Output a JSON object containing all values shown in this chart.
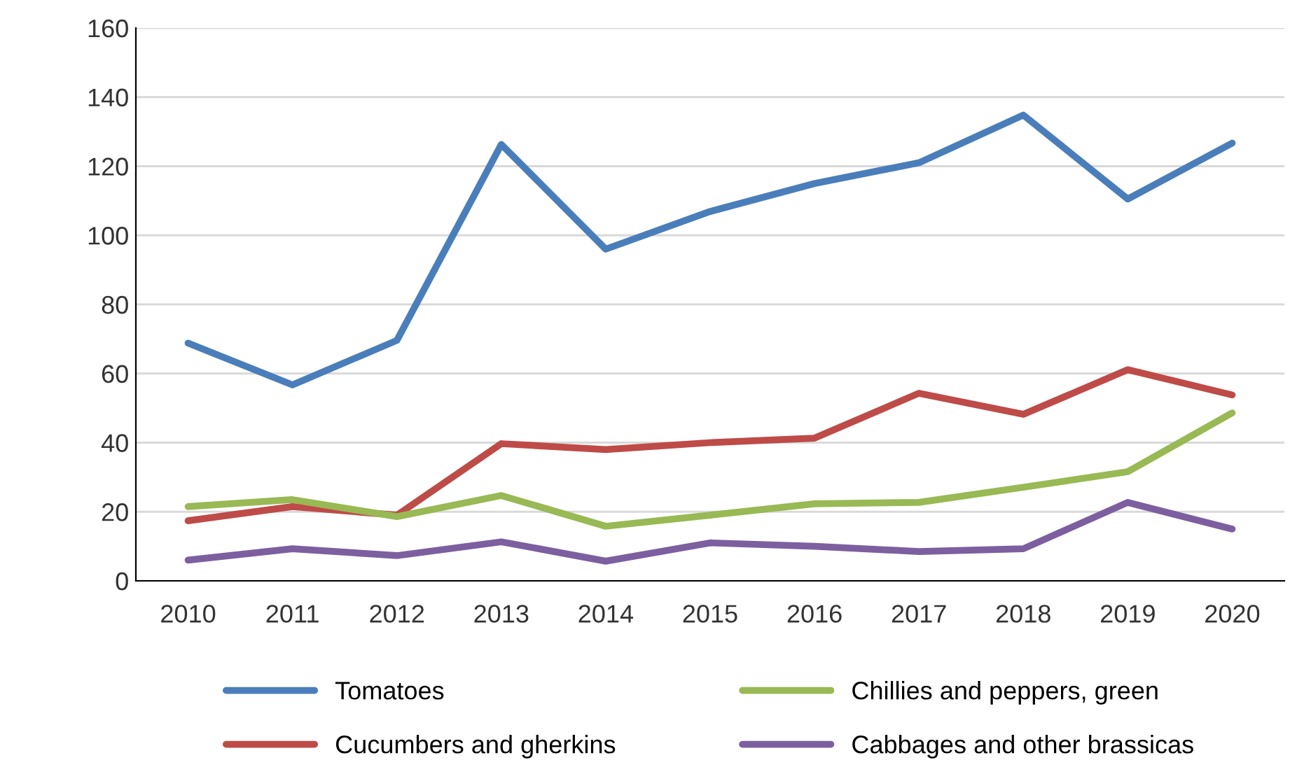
{
  "chart_data": {
    "type": "line",
    "categories": [
      "2010",
      "2011",
      "2012",
      "2013",
      "2014",
      "2015",
      "2016",
      "2017",
      "2018",
      "2019",
      "2020"
    ],
    "series": [
      {
        "name": "Tomatoes",
        "color": "#4a7ebb",
        "values": [
          68.8,
          56.7,
          69.6,
          126.3,
          96,
          106.9,
          115,
          121,
          134.8,
          110.5,
          126.7
        ]
      },
      {
        "name": "Cucumbers and gherkins",
        "color": "#be4b48",
        "values": [
          17.4,
          21.5,
          19,
          39.7,
          38,
          40,
          41.3,
          54.3,
          48.2,
          61.1,
          53.8
        ]
      },
      {
        "name": "Chillies and peppers, green",
        "color": "#98b954",
        "values": [
          21.5,
          23.5,
          18.6,
          24.7,
          15.8,
          19,
          22.3,
          22.7,
          27.1,
          31.6,
          48.6
        ]
      },
      {
        "name": "Cabbages and other brassicas",
        "color": "#7d5fa0",
        "values": [
          6,
          9.3,
          7.3,
          11.3,
          5.7,
          11,
          10,
          8.5,
          9.3,
          22.7,
          15
        ]
      }
    ],
    "ylim": [
      0,
      160
    ],
    "yticks": [
      0,
      20,
      40,
      60,
      80,
      100,
      120,
      140,
      160
    ],
    "grid": "y",
    "legend": "bottom",
    "marker": "none",
    "line_style": "solid"
  }
}
